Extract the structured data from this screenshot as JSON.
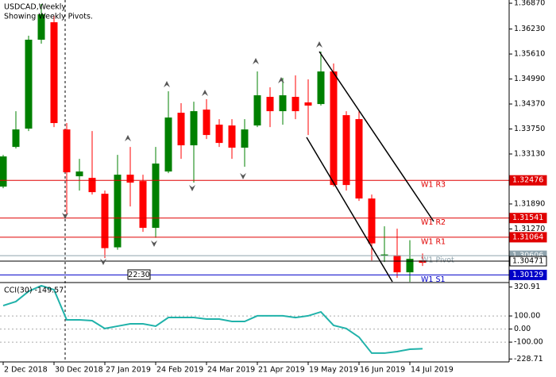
{
  "chart_data": [
    {
      "type": "candlestick",
      "title": "USDCAD,Weekly",
      "subtitle": "Showing Weekly Pivots.",
      "time_label": "22:30",
      "categories": [
        "2 Dec 2018",
        null,
        null,
        null,
        "30 Dec 2018",
        null,
        null,
        null,
        "27 Jan 2019",
        null,
        null,
        null,
        "24 Feb 2019",
        null,
        null,
        null,
        "24 Mar 2019",
        null,
        null,
        null,
        "21 Apr 2019",
        null,
        null,
        null,
        "19 May 2019",
        null,
        null,
        null,
        "16 Jun 2019",
        null,
        null,
        null,
        "14 Jul 2019",
        null
      ],
      "open": [
        1.3232,
        1.33305,
        1.33759,
        1.35965,
        1.36398,
        1.33739,
        1.32577,
        1.32537,
        1.32143,
        1.30814,
        1.32616,
        1.32458,
        1.31297,
        1.32695,
        1.34153,
        1.33345,
        1.34231,
        1.33857,
        1.33837,
        1.33286,
        1.33837,
        1.34547,
        1.34192,
        1.34547,
        1.34409,
        1.34369,
        1.35177,
        1.34093,
        1.33995,
        1.32025,
        1.30599,
        1.30617,
        1.30194,
        1.30489
      ],
      "high": [
        1.33109,
        1.34192,
        1.36064,
        1.36852,
        1.36556,
        1.33897,
        1.3301,
        1.33699,
        1.32222,
        1.33109,
        1.33305,
        1.32616,
        1.33305,
        1.34685,
        1.34389,
        1.34428,
        1.34488,
        1.33995,
        1.33995,
        1.33995,
        1.35177,
        1.34783,
        1.35019,
        1.35079,
        1.3498,
        1.3567,
        1.35374,
        1.34192,
        1.34192,
        1.32124,
        1.31336,
        1.31277,
        1.30991,
        1.3066
      ],
      "low": [
        1.32281,
        1.33266,
        1.33699,
        1.35867,
        1.33798,
        1.31631,
        1.32222,
        1.32124,
        1.30548,
        1.30755,
        1.31828,
        1.31198,
        1.3105,
        1.32655,
        1.3301,
        1.32419,
        1.33502,
        1.33305,
        1.3301,
        1.32813,
        1.33798,
        1.33798,
        1.33857,
        1.33995,
        1.33601,
        1.3433,
        1.3232,
        1.32222,
        1.31966,
        1.30489,
        1.3045,
        1.30055,
        1.29956,
        1.30351
      ],
      "close": [
        1.33069,
        1.33739,
        1.35965,
        1.36595,
        1.33897,
        1.32675,
        1.32695,
        1.32183,
        1.30794,
        1.32616,
        1.32419,
        1.31297,
        1.32892,
        1.34034,
        1.33345,
        1.34192,
        1.33601,
        1.33404,
        1.33286,
        1.33739,
        1.34586,
        1.34192,
        1.34586,
        1.34192,
        1.3433,
        1.35177,
        1.3236,
        1.3236,
        1.32025,
        1.30912,
        1.30637,
        1.30194,
        1.30528,
        1.3043
      ],
      "up_color": "#008000",
      "down_color": "#ff0000",
      "ylim": [
        1.2994,
        1.3695
      ],
      "yticks": [
        {
          "value": 1.3687,
          "label": "1.36870"
        },
        {
          "value": 1.3623,
          "label": "1.36230"
        },
        {
          "value": 1.3561,
          "label": "1.35610"
        },
        {
          "value": 1.3499,
          "label": "1.34990"
        },
        {
          "value": 1.3437,
          "label": "1.34370"
        },
        {
          "value": 1.3375,
          "label": "1.33750"
        },
        {
          "value": 1.3313,
          "label": "1.33130"
        },
        {
          "value": 1.3189,
          "label": "1.31890"
        },
        {
          "value": 1.3127,
          "label": "1.31270"
        }
      ],
      "levels": [
        {
          "name": "W1 R3",
          "value": 1.32476,
          "color": "#e00000"
        },
        {
          "name": "W1 R2",
          "value": 1.31541,
          "color": "#e00000"
        },
        {
          "name": "W1 R1",
          "value": 1.31064,
          "color": "#e00000"
        },
        {
          "name": "W1 Pivot",
          "value": 1.30606,
          "color": "#8fa3ad"
        },
        {
          "value": 1.30471,
          "color": "#ffffff"
        },
        {
          "name": "W1 S1",
          "value": 1.30129,
          "color": "#0000c8"
        }
      ]
    },
    {
      "type": "line",
      "title": "CCI(30) -149.57",
      "color": "#20b2aa",
      "values": [
        179,
        210,
        288,
        331,
        300,
        70,
        70,
        64,
        4,
        22,
        40,
        40,
        22,
        88,
        88,
        88,
        76,
        76,
        58,
        58,
        101,
        101,
        101,
        88,
        101,
        131,
        28,
        4,
        -62,
        -184,
        -184,
        -172,
        -154,
        -150
      ],
      "ylim": [
        -245,
        349
      ],
      "yticks": [
        320.91,
        {
          "value": 100,
          "label": "100.00"
        },
        {
          "value": 0,
          "label": "0.00"
        },
        {
          "value": -100,
          "label": "-100.00"
        },
        -228.71
      ]
    }
  ]
}
